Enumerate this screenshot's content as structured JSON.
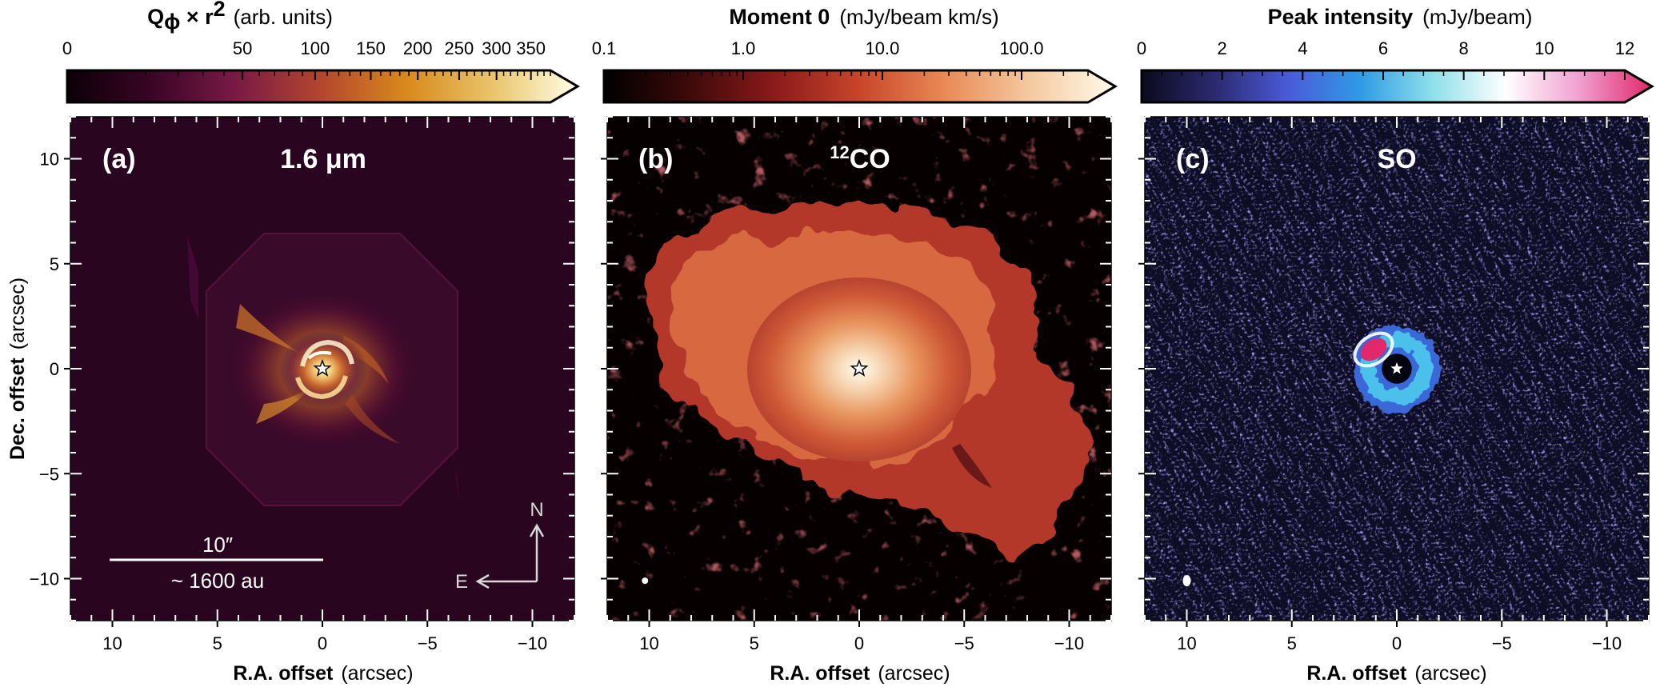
{
  "figure": {
    "y_axis_label": "Dec. offset",
    "y_axis_unit": "(arcsec)",
    "x_axis_label": "R.A. offset",
    "x_axis_unit": "(arcsec)",
    "scale_bar": {
      "angular": "10″",
      "physical": "~ 1600 au"
    },
    "compass": {
      "north": "N",
      "east": "E"
    }
  },
  "chart_data": [
    {
      "type": "heatmap",
      "panel_label": "(a)",
      "title": "1.6 μm",
      "colorbar": {
        "title": "Q",
        "title_sub": "ϕ",
        "title_rest": " × r",
        "title_sup": "2",
        "unit": "(arb. units)",
        "scale": "sqrt",
        "range": [
          0,
          380
        ],
        "ticks": [
          0,
          50,
          100,
          150,
          200,
          250,
          300,
          350
        ],
        "tick_labels": [
          "0",
          "50",
          "100",
          "150",
          "200",
          "250",
          "300",
          "350"
        ],
        "colormap": [
          "#0d0008",
          "#3a0526",
          "#7a1a45",
          "#b4472e",
          "#d98a1c",
          "#e9c46a",
          "#ffffe6"
        ]
      },
      "xlim": [
        12,
        -12
      ],
      "ylim": [
        -12,
        12
      ],
      "xticks": [
        10,
        5,
        0,
        -5,
        -10
      ],
      "yticks": [
        10,
        5,
        0,
        -5,
        -10
      ],
      "xtick_labels": [
        "10",
        "5",
        "0",
        "−5",
        "−10"
      ],
      "ytick_labels": [
        "10",
        "5",
        "0",
        "−5",
        "−10"
      ],
      "background": "#2a0520",
      "features": {
        "star": [
          0,
          0
        ],
        "octagon_half_width_arcsec": 6.4,
        "scale_bar_arcsec": [
          10,
          0
        ]
      }
    },
    {
      "type": "heatmap",
      "panel_label": "(b)",
      "title": "CO",
      "title_sup": "12",
      "colorbar": {
        "title": "Moment 0",
        "unit": "(mJy/beam km/s)",
        "scale": "log",
        "range": [
          0.1,
          300
        ],
        "ticks": [
          0.1,
          1.0,
          10.0,
          100.0
        ],
        "tick_labels": [
          "0.1",
          "1.0",
          "10.0",
          "100.0"
        ],
        "colormap": [
          "#000000",
          "#3d0a0a",
          "#8b1a1a",
          "#c8452a",
          "#e98a55",
          "#f5c9a0",
          "#fffbea"
        ]
      },
      "xlim": [
        12,
        -12
      ],
      "ylim": [
        -12,
        12
      ],
      "xticks": [
        10,
        5,
        0,
        -5,
        -10
      ],
      "yticks": [
        10,
        5,
        0,
        -5,
        -10
      ],
      "xtick_labels": [
        "10",
        "5",
        "0",
        "−5",
        "−10"
      ],
      "ytick_labels": [],
      "background": "#060000",
      "features": {
        "star": [
          0,
          0
        ],
        "beam": [
          10.2,
          -10.1
        ]
      }
    },
    {
      "type": "heatmap",
      "panel_label": "(c)",
      "title": "SO",
      "colorbar": {
        "title": "Peak intensity",
        "unit": "(mJy/beam)",
        "scale": "linear",
        "range": [
          0,
          12
        ],
        "ticks": [
          0,
          2,
          4,
          6,
          8,
          10,
          12
        ],
        "tick_labels": [
          "0",
          "2",
          "4",
          "6",
          "8",
          "10",
          "12"
        ],
        "colormap": [
          "#0b0a1e",
          "#2b2a6e",
          "#4a5ad8",
          "#2f9be6",
          "#8fe0ea",
          "#ffffff",
          "#f0a0d0",
          "#e0286a"
        ]
      },
      "xlim": [
        12,
        -12
      ],
      "ylim": [
        -12,
        12
      ],
      "xticks": [
        10,
        5,
        0,
        -5,
        -10
      ],
      "yticks": [
        10,
        5,
        0,
        -5,
        -10
      ],
      "xtick_labels": [
        "10",
        "5",
        "0",
        "−5",
        "−10"
      ],
      "ytick_labels": [],
      "background": "#0e0d26",
      "features": {
        "star": [
          0,
          0
        ],
        "beam": [
          10,
          -10.1
        ],
        "ring_radius_arcsec": 1.3
      }
    }
  ]
}
